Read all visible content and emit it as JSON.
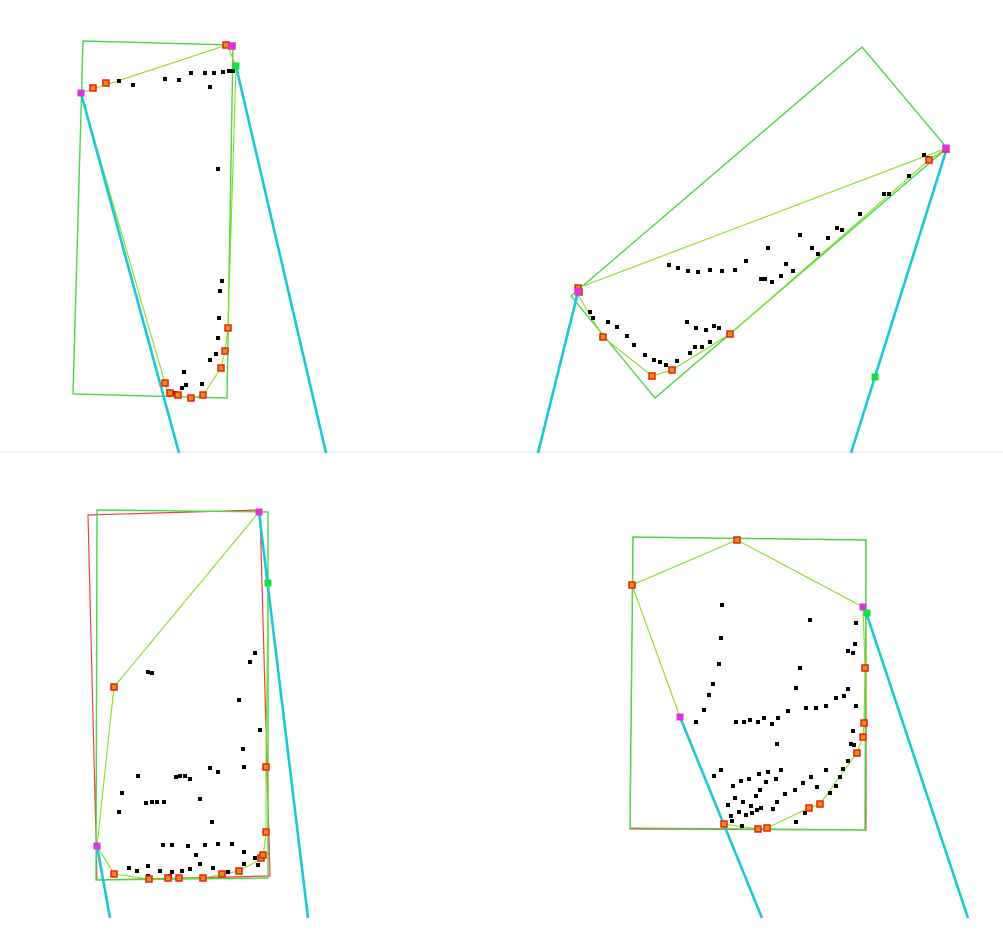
{
  "colors": {
    "background": "#ffffff",
    "divider": "#f2f2f2",
    "bounding_box": "#48d848",
    "min_area_box": "#f04040",
    "hull": "#84e020",
    "ray": "#1ac8d8",
    "point": "#000000",
    "hull_vertex": "#e82010",
    "hull_vertex_fill": "#e89010",
    "tangent_point": "#e030e0",
    "support_point": "#10e040"
  },
  "panels": [
    {
      "id": "top-left",
      "bbox_poly": [
        [
          83,
          41
        ],
        [
          233,
          45
        ],
        [
          227,
          398
        ],
        [
          73,
          394
        ]
      ],
      "hull": [
        [
          81,
          93
        ],
        [
          227,
          45
        ],
        [
          236,
          66
        ],
        [
          228,
          328
        ],
        [
          225,
          351
        ],
        [
          221,
          368
        ],
        [
          203,
          395
        ],
        [
          191,
          398
        ],
        [
          168,
          394
        ],
        [
          165,
          383
        ]
      ],
      "rays": [
        [
          [
            81,
            93
          ],
          [
            179,
            453
          ]
        ],
        [
          [
            236,
            66
          ],
          [
            326,
            453
          ]
        ]
      ],
      "points": [
        [
          119,
          81
        ],
        [
          133,
          85
        ],
        [
          165,
          79
        ],
        [
          179,
          80
        ],
        [
          191,
          73
        ],
        [
          205,
          73
        ],
        [
          214,
          73
        ],
        [
          223,
          72
        ],
        [
          229,
          71
        ],
        [
          233,
          71
        ],
        [
          210,
          87
        ],
        [
          218,
          169
        ],
        [
          222,
          281
        ],
        [
          220,
          291
        ],
        [
          219,
          318
        ],
        [
          218,
          338
        ],
        [
          216,
          354
        ],
        [
          210,
          360
        ],
        [
          202,
          384
        ],
        [
          186,
          385
        ],
        [
          182,
          388
        ],
        [
          175,
          393
        ],
        [
          184,
          372
        ]
      ],
      "hull_vertices": [
        [
          93,
          88
        ],
        [
          106,
          83
        ],
        [
          226,
          45
        ],
        [
          232,
          46
        ],
        [
          228,
          328
        ],
        [
          225,
          351
        ],
        [
          221,
          368
        ],
        [
          203,
          395
        ],
        [
          191,
          398
        ],
        [
          178,
          395
        ],
        [
          170,
          393
        ],
        [
          165,
          383
        ]
      ],
      "tangent_points": [
        [
          81,
          93
        ],
        [
          232,
          46
        ]
      ],
      "support_points": [
        [
          236,
          66
        ]
      ]
    },
    {
      "id": "top-right",
      "bbox_poly": [
        [
          862,
          47
        ],
        [
          947,
          148
        ],
        [
          655,
          398
        ],
        [
          571,
          296
        ]
      ],
      "hull": [
        [
          578,
          288
        ],
        [
          947,
          148
        ],
        [
          929,
          160
        ],
        [
          730,
          334
        ],
        [
          672,
          370
        ],
        [
          652,
          376
        ],
        [
          603,
          337
        ],
        [
          577,
          293
        ]
      ],
      "rays": [
        [
          [
            578,
            292
          ],
          [
            538,
            453
          ]
        ],
        [
          [
            947,
            148
          ],
          [
            851,
            453
          ]
        ]
      ],
      "points": [
        [
          590,
          312
        ],
        [
          593,
          318
        ],
        [
          608,
          322
        ],
        [
          617,
          327
        ],
        [
          627,
          336
        ],
        [
          634,
          345
        ],
        [
          645,
          355
        ],
        [
          654,
          360
        ],
        [
          660,
          362
        ],
        [
          666,
          365
        ],
        [
          677,
          361
        ],
        [
          690,
          353
        ],
        [
          695,
          347
        ],
        [
          702,
          347
        ],
        [
          710,
          342
        ],
        [
          719,
          328
        ],
        [
          714,
          326
        ],
        [
          706,
          330
        ],
        [
          696,
          328
        ],
        [
          687,
          322
        ],
        [
          669,
          265
        ],
        [
          678,
          268
        ],
        [
          688,
          271
        ],
        [
          698,
          272
        ],
        [
          710,
          270
        ],
        [
          722,
          271
        ],
        [
          735,
          270
        ],
        [
          746,
          261
        ],
        [
          768,
          248
        ],
        [
          761,
          279
        ],
        [
          765,
          279
        ],
        [
          772,
          282
        ],
        [
          781,
          276
        ],
        [
          793,
          271
        ],
        [
          786,
          264
        ],
        [
          800,
          235
        ],
        [
          812,
          248
        ],
        [
          818,
          254
        ],
        [
          828,
          238
        ],
        [
          837,
          228
        ],
        [
          842,
          230
        ],
        [
          860,
          214
        ],
        [
          884,
          194
        ],
        [
          889,
          194
        ],
        [
          909,
          176
        ],
        [
          924,
          155
        ],
        [
          928,
          158
        ]
      ],
      "hull_vertices": [
        [
          578,
          288
        ],
        [
          579,
          292
        ],
        [
          929,
          160
        ],
        [
          946,
          149
        ],
        [
          730,
          334
        ],
        [
          672,
          370
        ],
        [
          652,
          376
        ],
        [
          603,
          337
        ]
      ],
      "tangent_points": [
        [
          578,
          292
        ],
        [
          946,
          148
        ]
      ],
      "support_points": [
        [
          875,
          377
        ]
      ]
    },
    {
      "id": "bottom-left",
      "bbox_poly": [
        [
          97,
          510
        ],
        [
          268,
          512
        ],
        [
          268,
          878
        ],
        [
          96,
          880
        ]
      ],
      "min_area_poly": [
        [
          88,
          515
        ],
        [
          260,
          510
        ],
        [
          270,
          876
        ],
        [
          97,
          880
        ]
      ],
      "hull": [
        [
          97,
          846
        ],
        [
          114,
          687
        ],
        [
          259,
          512
        ],
        [
          268,
          582
        ],
        [
          266,
          767
        ],
        [
          266,
          832
        ],
        [
          263,
          858
        ],
        [
          239,
          871
        ],
        [
          203,
          878
        ],
        [
          149,
          879
        ],
        [
          114,
          874
        ]
      ],
      "rays": [
        [
          [
            97,
            846
          ],
          [
            110,
            918
          ]
        ],
        [
          [
            259,
            512
          ],
          [
            308,
            918
          ]
        ]
      ],
      "points": [
        [
          148,
          672
        ],
        [
          152,
          673
        ],
        [
          250,
          662
        ],
        [
          255,
          653
        ],
        [
          239,
          700
        ],
        [
          260,
          730
        ],
        [
          243,
          749
        ],
        [
          244,
          767
        ],
        [
          210,
          768
        ],
        [
          218,
          772
        ],
        [
          122,
          793
        ],
        [
          138,
          776
        ],
        [
          176,
          777
        ],
        [
          180,
          776
        ],
        [
          185,
          776
        ],
        [
          190,
          779
        ],
        [
          146,
          803
        ],
        [
          152,
          802
        ],
        [
          157,
          802
        ],
        [
          164,
          802
        ],
        [
          200,
          799
        ],
        [
          119,
          812
        ],
        [
          163,
          845
        ],
        [
          172,
          845
        ],
        [
          188,
          846
        ],
        [
          205,
          845
        ],
        [
          218,
          844
        ],
        [
          232,
          844
        ],
        [
          244,
          852
        ],
        [
          255,
          858
        ],
        [
          129,
          868
        ],
        [
          137,
          871
        ],
        [
          148,
          866
        ],
        [
          160,
          871
        ],
        [
          172,
          872
        ],
        [
          190,
          869
        ],
        [
          200,
          864
        ],
        [
          213,
          868
        ],
        [
          228,
          872
        ],
        [
          244,
          864
        ],
        [
          258,
          865
        ],
        [
          212,
          822
        ],
        [
          196,
          855
        ],
        [
          182,
          871
        ],
        [
          148,
          876
        ],
        [
          170,
          876
        ]
      ],
      "hull_vertices": [
        [
          114,
          687
        ],
        [
          266,
          767
        ],
        [
          266,
          832
        ],
        [
          261,
          858
        ],
        [
          263,
          855
        ],
        [
          239,
          871
        ],
        [
          222,
          874
        ],
        [
          203,
          878
        ],
        [
          179,
          878
        ],
        [
          168,
          878
        ],
        [
          149,
          879
        ],
        [
          114,
          874
        ]
      ],
      "tangent_points": [
        [
          97,
          846
        ],
        [
          259,
          512
        ]
      ],
      "support_points": [
        [
          268,
          583
        ]
      ]
    },
    {
      "id": "bottom-right",
      "bbox_poly": [
        [
          633,
          537
        ],
        [
          866,
          540
        ],
        [
          865,
          830
        ],
        [
          630,
          828
        ]
      ],
      "min_area_poly": [
        [
          633,
          537
        ],
        [
          866,
          540
        ],
        [
          866,
          830
        ],
        [
          630,
          829
        ]
      ],
      "hull": [
        [
          632,
          585
        ],
        [
          737,
          540
        ],
        [
          863,
          607
        ],
        [
          865,
          668
        ],
        [
          864,
          723
        ],
        [
          863,
          737
        ],
        [
          857,
          753
        ],
        [
          820,
          804
        ],
        [
          809,
          808
        ],
        [
          767,
          828
        ],
        [
          758,
          829
        ],
        [
          724,
          824
        ],
        [
          680,
          717
        ]
      ],
      "rays": [
        [
          [
            680,
            717
          ],
          [
            762,
            918
          ]
        ],
        [
          [
            866,
            612
          ],
          [
            968,
            918
          ]
        ]
      ],
      "points": [
        [
          722,
          605
        ],
        [
          721,
          638
        ],
        [
          719,
          664
        ],
        [
          713,
          684
        ],
        [
          709,
          695
        ],
        [
          704,
          710
        ],
        [
          696,
          722
        ],
        [
          736,
          722
        ],
        [
          744,
          722
        ],
        [
          750,
          720
        ],
        [
          758,
          722
        ],
        [
          764,
          718
        ],
        [
          772,
          724
        ],
        [
          777,
          744
        ],
        [
          810,
          620
        ],
        [
          800,
          668
        ],
        [
          796,
          688
        ],
        [
          788,
          711
        ],
        [
          778,
          718
        ],
        [
          806,
          708
        ],
        [
          816,
          708
        ],
        [
          826,
          706
        ],
        [
          836,
          698
        ],
        [
          844,
          696
        ],
        [
          848,
          689
        ],
        [
          853,
          653
        ],
        [
          848,
          651
        ],
        [
          856,
          623
        ],
        [
          855,
          644
        ],
        [
          856,
          706
        ],
        [
          853,
          731
        ],
        [
          851,
          744
        ],
        [
          854,
          745
        ],
        [
          848,
          761
        ],
        [
          843,
          769
        ],
        [
          840,
          777
        ],
        [
          836,
          786
        ],
        [
          830,
          793
        ],
        [
          817,
          787
        ],
        [
          826,
          770
        ],
        [
          811,
          777
        ],
        [
          803,
          783
        ],
        [
          795,
          790
        ],
        [
          785,
          794
        ],
        [
          777,
          802
        ],
        [
          773,
          809
        ],
        [
          761,
          808
        ],
        [
          752,
          813
        ],
        [
          746,
          815
        ],
        [
          739,
          812
        ],
        [
          731,
          816
        ],
        [
          728,
          805
        ],
        [
          735,
          798
        ],
        [
          743,
          802
        ],
        [
          751,
          806
        ],
        [
          756,
          796
        ],
        [
          760,
          790
        ],
        [
          766,
          782
        ],
        [
          776,
          779
        ],
        [
          781,
          770
        ],
        [
          768,
          772
        ],
        [
          759,
          774
        ],
        [
          749,
          779
        ],
        [
          741,
          781
        ],
        [
          733,
          786
        ],
        [
          721,
          770
        ],
        [
          714,
          776
        ],
        [
          757,
          810
        ],
        [
          732,
          821
        ],
        [
          742,
          826
        ],
        [
          805,
          813
        ],
        [
          796,
          822
        ]
      ],
      "hull_vertices": [
        [
          632,
          585
        ],
        [
          737,
          540
        ],
        [
          865,
          668
        ],
        [
          864,
          723
        ],
        [
          863,
          737
        ],
        [
          857,
          753
        ],
        [
          820,
          804
        ],
        [
          809,
          808
        ],
        [
          767,
          828
        ],
        [
          758,
          829
        ],
        [
          724,
          824
        ]
      ],
      "tangent_points": [
        [
          680,
          717
        ],
        [
          863,
          607
        ]
      ],
      "support_points": [
        [
          867,
          613
        ]
      ]
    }
  ]
}
